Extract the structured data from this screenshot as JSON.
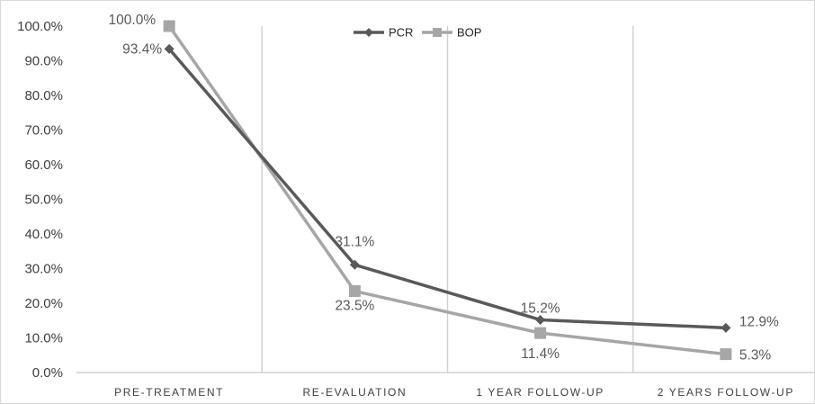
{
  "chart_data": {
    "type": "line",
    "categories": [
      "PRE-TREATMENT",
      "RE-EVALUATION",
      "1 YEAR FOLLOW-UP",
      "2 YEARS FOLLOW-UP"
    ],
    "series": [
      {
        "name": "PCR",
        "values": [
          93.4,
          31.1,
          15.2,
          12.9
        ],
        "labels": [
          "93.4%",
          "31.1%",
          "15.2%",
          "12.9%"
        ],
        "color": "#595959",
        "marker": "diamond"
      },
      {
        "name": "BOP",
        "values": [
          100.0,
          23.5,
          11.4,
          5.3
        ],
        "labels": [
          "100.0%",
          "23.5%",
          "11.4%",
          "5.3%"
        ],
        "color": "#a6a6a6",
        "marker": "square"
      }
    ],
    "yticks": [
      "0.0%",
      "10.0%",
      "20.0%",
      "30.0%",
      "40.0%",
      "50.0%",
      "60.0%",
      "70.0%",
      "80.0%",
      "90.0%",
      "100.0%"
    ],
    "ylim": [
      0,
      100
    ],
    "title": "",
    "xlabel": "",
    "ylabel": "",
    "grid": "vertical category separators",
    "legend_position": "top-center"
  }
}
